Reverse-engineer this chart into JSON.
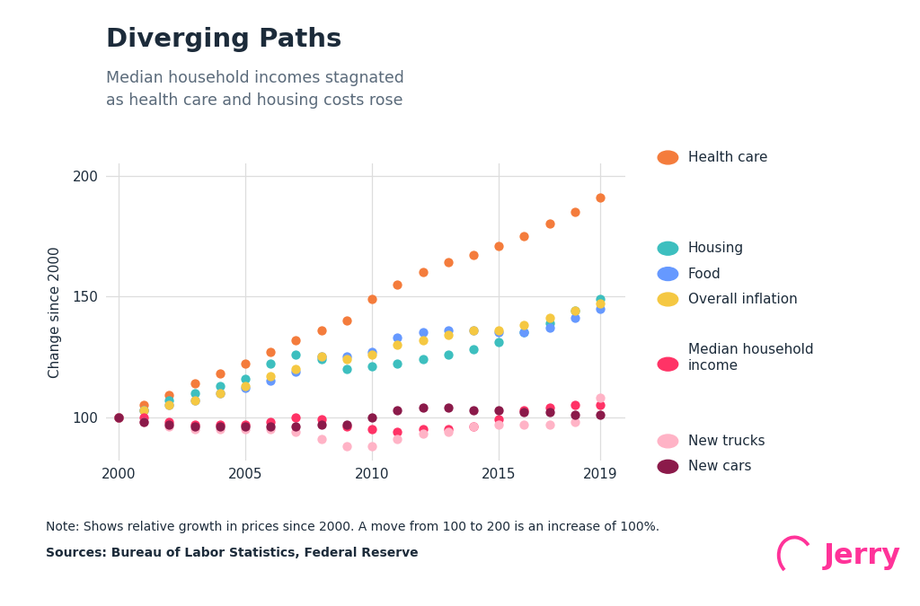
{
  "title": "Diverging Paths",
  "subtitle": "Median household incomes stagnated\nas health care and housing costs rose",
  "ylabel": "Change since 2000",
  "note": "Note: Shows relative growth in prices since 2000. A move from 100 to 200 is an increase of 100%.",
  "sources": "Sources: Bureau of Labor Statistics, Federal Reserve",
  "xlim": [
    1999.5,
    2020.0
  ],
  "ylim": [
    82,
    205
  ],
  "xticks": [
    2000,
    2005,
    2010,
    2015,
    2019
  ],
  "yticks": [
    100,
    150,
    200
  ],
  "series": {
    "Health care": {
      "color": "#F47C3C",
      "x": [
        2000,
        2001,
        2002,
        2003,
        2004,
        2005,
        2006,
        2007,
        2008,
        2009,
        2010,
        2011,
        2012,
        2013,
        2014,
        2015,
        2016,
        2017,
        2018,
        2019
      ],
      "y": [
        100,
        105,
        109,
        114,
        118,
        122,
        127,
        132,
        136,
        140,
        149,
        155,
        160,
        164,
        167,
        171,
        175,
        180,
        185,
        191
      ]
    },
    "Housing": {
      "color": "#3DBFBF",
      "x": [
        2000,
        2001,
        2002,
        2003,
        2004,
        2005,
        2006,
        2007,
        2008,
        2009,
        2010,
        2011,
        2012,
        2013,
        2014,
        2015,
        2016,
        2017,
        2018,
        2019
      ],
      "y": [
        100,
        103,
        107,
        110,
        113,
        116,
        122,
        126,
        124,
        120,
        121,
        122,
        124,
        126,
        128,
        131,
        135,
        139,
        144,
        149
      ]
    },
    "Food": {
      "color": "#6699FF",
      "x": [
        2000,
        2001,
        2002,
        2003,
        2004,
        2005,
        2006,
        2007,
        2008,
        2009,
        2010,
        2011,
        2012,
        2013,
        2014,
        2015,
        2016,
        2017,
        2018,
        2019
      ],
      "y": [
        100,
        103,
        105,
        107,
        110,
        112,
        115,
        119,
        125,
        125,
        127,
        133,
        135,
        136,
        136,
        135,
        135,
        137,
        141,
        145
      ]
    },
    "Overall inflation": {
      "color": "#F5C842",
      "x": [
        2000,
        2001,
        2002,
        2003,
        2004,
        2005,
        2006,
        2007,
        2008,
        2009,
        2010,
        2011,
        2012,
        2013,
        2014,
        2015,
        2016,
        2017,
        2018,
        2019
      ],
      "y": [
        100,
        103,
        105,
        107,
        110,
        113,
        117,
        120,
        125,
        124,
        126,
        130,
        132,
        134,
        136,
        136,
        138,
        141,
        144,
        147
      ]
    },
    "Median household income": {
      "color": "#FF3366",
      "x": [
        2000,
        2001,
        2002,
        2003,
        2004,
        2005,
        2006,
        2007,
        2008,
        2009,
        2010,
        2011,
        2012,
        2013,
        2014,
        2015,
        2016,
        2017,
        2018,
        2019
      ],
      "y": [
        100,
        100,
        98,
        97,
        97,
        97,
        98,
        100,
        99,
        96,
        95,
        94,
        95,
        95,
        96,
        99,
        103,
        104,
        105,
        105
      ]
    },
    "New trucks": {
      "color": "#FFB3C6",
      "x": [
        2000,
        2001,
        2002,
        2003,
        2004,
        2005,
        2006,
        2007,
        2008,
        2009,
        2010,
        2011,
        2012,
        2013,
        2014,
        2015,
        2016,
        2017,
        2018,
        2019
      ],
      "y": [
        100,
        98,
        96,
        95,
        95,
        95,
        95,
        94,
        91,
        88,
        88,
        91,
        93,
        94,
        96,
        97,
        97,
        97,
        98,
        108
      ]
    },
    "New cars": {
      "color": "#8B1A4A",
      "x": [
        2000,
        2001,
        2002,
        2003,
        2004,
        2005,
        2006,
        2007,
        2008,
        2009,
        2010,
        2011,
        2012,
        2013,
        2014,
        2015,
        2016,
        2017,
        2018,
        2019
      ],
      "y": [
        100,
        98,
        97,
        96,
        96,
        96,
        96,
        96,
        97,
        97,
        100,
        103,
        104,
        104,
        103,
        103,
        102,
        102,
        101,
        101
      ]
    }
  },
  "legend_order": [
    "Health care",
    "Housing",
    "Food",
    "Overall inflation",
    "Median household income",
    "New trucks",
    "New cars"
  ],
  "background_color": "#FFFFFF",
  "title_color": "#1C2B3A",
  "subtitle_color": "#5A6A7A",
  "text_color": "#1C2B3A",
  "grid_color": "#DDDDDD",
  "marker_size": 55,
  "title_fontsize": 21,
  "subtitle_fontsize": 12.5,
  "ylabel_fontsize": 11,
  "tick_fontsize": 11,
  "legend_fontsize": 11,
  "note_fontsize": 10
}
